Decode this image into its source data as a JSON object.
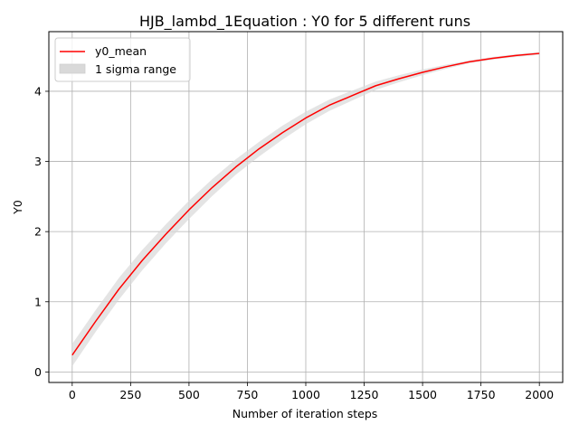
{
  "chart_data": {
    "type": "line",
    "title": "HJB_lambd_1Equation : Y0 for 5 different runs",
    "xlabel": "Number of iteration steps",
    "ylabel": "Y0",
    "xlim": [
      -100,
      2100
    ],
    "ylim": [
      -0.15,
      4.85
    ],
    "xticks": [
      0,
      250,
      500,
      750,
      1000,
      1250,
      1500,
      1750,
      2000
    ],
    "xtick_labels": [
      "0",
      "250",
      "500",
      "750",
      "1000",
      "1250",
      "1500",
      "1750",
      "2000"
    ],
    "yticks": [
      0,
      1,
      2,
      3,
      4
    ],
    "ytick_labels": [
      "0",
      "1",
      "2",
      "3",
      "4"
    ],
    "grid": true,
    "legend_position": "upper-left",
    "x": [
      0,
      100,
      200,
      300,
      400,
      500,
      600,
      700,
      800,
      900,
      1000,
      1100,
      1200,
      1300,
      1400,
      1500,
      1600,
      1700,
      1800,
      1900,
      2000
    ],
    "series": [
      {
        "name": "y0_mean",
        "kind": "line",
        "color": "#ff0000",
        "values": [
          0.24,
          0.72,
          1.18,
          1.59,
          1.96,
          2.31,
          2.63,
          2.92,
          3.18,
          3.41,
          3.62,
          3.8,
          3.94,
          4.08,
          4.18,
          4.27,
          4.35,
          4.42,
          4.47,
          4.51,
          4.54
        ]
      },
      {
        "name": "1 sigma range",
        "kind": "band",
        "color": "#d9d9d9",
        "lower": [
          0.08,
          0.57,
          1.03,
          1.45,
          1.83,
          2.18,
          2.51,
          2.81,
          3.07,
          3.31,
          3.53,
          3.72,
          3.87,
          4.02,
          4.13,
          4.23,
          4.32,
          4.4,
          4.45,
          4.49,
          4.52
        ],
        "upper": [
          0.4,
          0.88,
          1.34,
          1.74,
          2.1,
          2.44,
          2.75,
          3.03,
          3.28,
          3.51,
          3.71,
          3.88,
          4.01,
          4.14,
          4.23,
          4.31,
          4.38,
          4.44,
          4.49,
          4.53,
          4.56
        ]
      }
    ]
  }
}
